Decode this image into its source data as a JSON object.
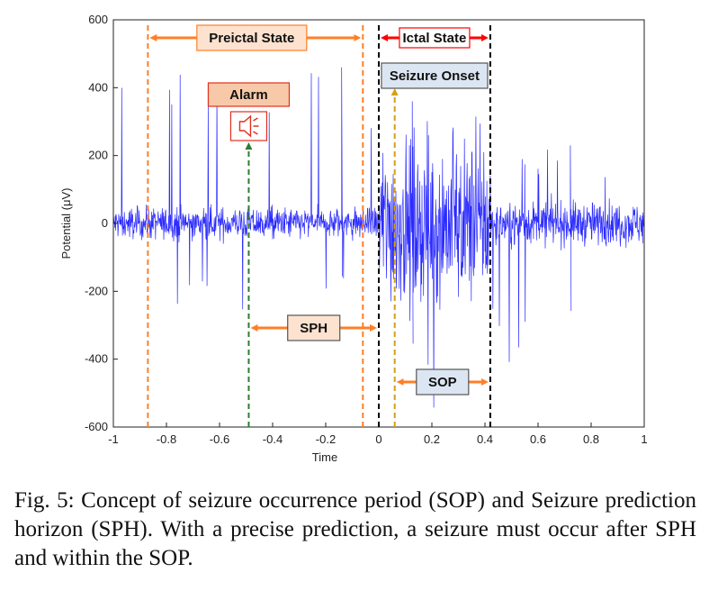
{
  "chart_data": {
    "type": "line",
    "xlabel": "Time",
    "ylabel": "Potential (μV)",
    "xlim": [
      -1,
      1
    ],
    "ylim": [
      -600,
      600
    ],
    "x_ticks": [
      "-1",
      "-0.8",
      "-0.6",
      "-0.4",
      "-0.2",
      "0",
      "0.2",
      "0.4",
      "0.6",
      "0.8",
      "1"
    ],
    "y_ticks": [
      "600",
      "400",
      "200",
      "0",
      "-200",
      "-400",
      "-600"
    ],
    "series": [
      {
        "color": "#2b2bff",
        "segments": [
          {
            "x_start": -1.0,
            "x_end": 0.0,
            "typical_amplitude": 60,
            "peak_max": 460,
            "peak_min": -260
          },
          {
            "x_start": 0.0,
            "x_end": 0.42,
            "typical_amplitude": 300,
            "peak_max": 360,
            "peak_min": -590
          },
          {
            "x_start": 0.42,
            "x_end": 1.0,
            "typical_amplitude": 80,
            "peak_max": 230,
            "peak_min": -430
          }
        ]
      }
    ],
    "markers": [
      {
        "x": -0.87,
        "color": "#ff7f27",
        "style": "dashed"
      },
      {
        "x": -0.49,
        "color": "#2e7d32",
        "style": "dashed-arrow"
      },
      {
        "x": -0.06,
        "color": "#ff7f27",
        "style": "dashed"
      },
      {
        "x": 0.0,
        "color": "#000000",
        "style": "dashed"
      },
      {
        "x": 0.06,
        "color": "#d4a017",
        "style": "dashed-arrow"
      },
      {
        "x": 0.42,
        "color": "#000000",
        "style": "dashed"
      }
    ],
    "annotations": [
      {
        "label": "Preictal State",
        "x_from": -0.87,
        "x_to": -0.06,
        "color": "#ff7f27"
      },
      {
        "label": "Ictal State",
        "x_from": 0.0,
        "x_to": 0.42,
        "color": "#ff0000"
      },
      {
        "label": "Seizure Onset",
        "x": 0.06
      },
      {
        "label": "Alarm",
        "x": -0.49
      },
      {
        "label": "SPH",
        "x_from": -0.49,
        "x_to": 0.0,
        "color": "#ff7f27"
      },
      {
        "label": "SOP",
        "x_from": 0.06,
        "x_to": 0.42,
        "color": "#ff7f27"
      }
    ],
    "grid": false
  },
  "caption": "Fig. 5: Concept of seizure occurrence period (SOP) and Seizure prediction horizon (SPH). With a precise prediction, a seizure must occur after SPH and within the SOP."
}
